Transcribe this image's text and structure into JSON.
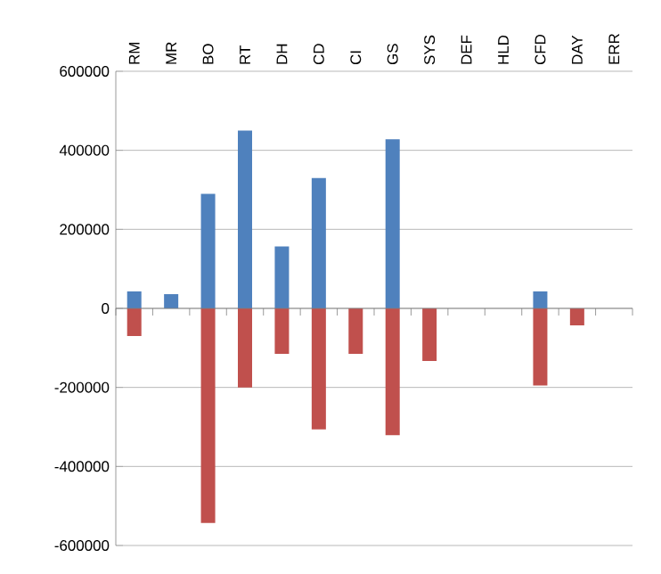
{
  "chart_data": {
    "type": "bar",
    "categories": [
      "RM",
      "MR",
      "BO",
      "RT",
      "DH",
      "CD",
      "CI",
      "GS",
      "SYS",
      "DEF",
      "HLD",
      "CFD",
      "DAY",
      "ERR"
    ],
    "series": [
      {
        "color": "#4f81bd",
        "values": [
          43000,
          36000,
          290000,
          450000,
          157000,
          330000,
          null,
          428000,
          null,
          null,
          null,
          43000,
          null,
          null
        ]
      },
      {
        "color": "#c0504d",
        "values": [
          -70000,
          null,
          -543000,
          -200000,
          -115000,
          -306000,
          -115000,
          -321000,
          -133000,
          null,
          null,
          -195000,
          -43000,
          null
        ]
      }
    ],
    "ylim": [
      -600000,
      600000
    ],
    "yticks": [
      -600000,
      -400000,
      -200000,
      0,
      200000,
      400000,
      600000
    ],
    "grid": "y",
    "stacked": true
  }
}
